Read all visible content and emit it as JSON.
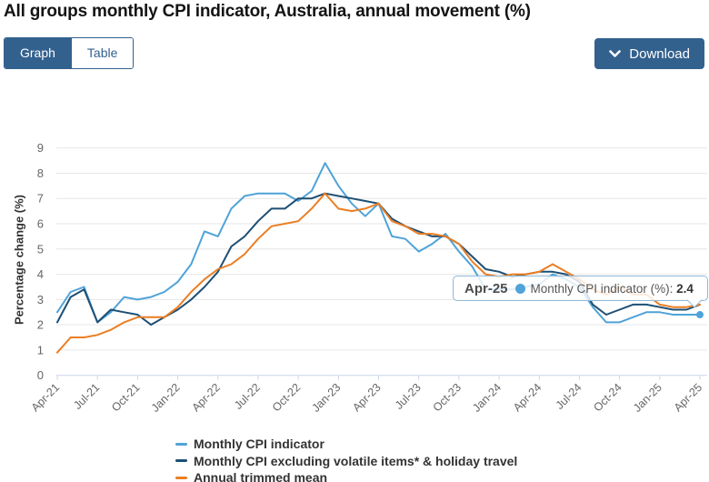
{
  "page": {
    "title": "All groups monthly CPI indicator, Australia, annual movement (%)"
  },
  "toolbar": {
    "tabs": [
      {
        "label": "Graph",
        "active": true
      },
      {
        "label": "Table",
        "active": false
      }
    ],
    "download_label": "Download"
  },
  "colors": {
    "button_blue": "#33618E",
    "grid_line": "#E6E6E6",
    "axis_zero_line": "#CCD6EB",
    "tick_text": "#666666",
    "legend_text": "#333333"
  },
  "chart_data": {
    "type": "line",
    "title": "All groups monthly CPI indicator, Australia, annual movement (%)",
    "xlabel": "",
    "ylabel": "Percentage change (%)",
    "ylim": [
      0,
      9
    ],
    "y_ticks": [
      0,
      1,
      2,
      3,
      4,
      5,
      6,
      7,
      8,
      9
    ],
    "grid": true,
    "legend_position": "bottom",
    "x_tick_every": 3,
    "x_tick_labels": [
      "Apr-21",
      "Jul-21",
      "Oct-21",
      "Jan-22",
      "Apr-22",
      "Jul-22",
      "Oct-22",
      "Jan-23",
      "Apr-23",
      "Jul-23",
      "Oct-23",
      "Jan-24",
      "Apr-24",
      "Jul-24",
      "Oct-24",
      "Jan-25",
      "Apr-25"
    ],
    "categories": [
      "Apr-21",
      "May-21",
      "Jun-21",
      "Jul-21",
      "Aug-21",
      "Sep-21",
      "Oct-21",
      "Nov-21",
      "Dec-21",
      "Jan-22",
      "Feb-22",
      "Mar-22",
      "Apr-22",
      "May-22",
      "Jun-22",
      "Jul-22",
      "Aug-22",
      "Sep-22",
      "Oct-22",
      "Nov-22",
      "Dec-22",
      "Jan-23",
      "Feb-23",
      "Mar-23",
      "Apr-23",
      "May-23",
      "Jun-23",
      "Jul-23",
      "Aug-23",
      "Sep-23",
      "Oct-23",
      "Nov-23",
      "Dec-23",
      "Jan-24",
      "Feb-24",
      "Mar-24",
      "Apr-24",
      "May-24",
      "Jun-24",
      "Jul-24",
      "Aug-24",
      "Sep-24",
      "Oct-24",
      "Nov-24",
      "Dec-24",
      "Jan-25",
      "Feb-25",
      "Mar-25",
      "Apr-25"
    ],
    "series": [
      {
        "name": "Monthly CPI indicator",
        "color": "#4FA3D9",
        "values": [
          2.5,
          3.3,
          3.5,
          2.1,
          2.5,
          3.1,
          3.0,
          3.1,
          3.3,
          3.7,
          4.4,
          5.7,
          5.5,
          6.6,
          7.1,
          7.2,
          7.2,
          7.2,
          6.9,
          7.3,
          8.4,
          7.5,
          6.8,
          6.3,
          6.8,
          5.5,
          5.4,
          4.9,
          5.2,
          5.6,
          4.9,
          4.3,
          3.4,
          3.4,
          3.4,
          3.5,
          3.6,
          4.0,
          3.8,
          3.5,
          2.7,
          2.1,
          2.1,
          2.3,
          2.5,
          2.5,
          2.4,
          2.4,
          2.4
        ]
      },
      {
        "name": "Monthly CPI excluding volatile items* & holiday travel",
        "color": "#1D4F74",
        "values": [
          2.1,
          3.1,
          3.4,
          2.1,
          2.6,
          2.5,
          2.4,
          2.0,
          2.3,
          2.6,
          3.0,
          3.5,
          4.1,
          5.1,
          5.5,
          6.1,
          6.6,
          6.6,
          7.0,
          7.0,
          7.2,
          7.1,
          7.0,
          6.9,
          6.8,
          6.2,
          5.9,
          5.7,
          5.5,
          5.5,
          5.2,
          4.7,
          4.2,
          4.1,
          3.9,
          4.0,
          4.1,
          4.1,
          4.0,
          3.7,
          2.8,
          2.4,
          2.6,
          2.8,
          2.8,
          2.7,
          2.6,
          2.6,
          2.8
        ]
      },
      {
        "name": "Annual trimmed mean",
        "color": "#EB7E23",
        "values": [
          0.9,
          1.5,
          1.5,
          1.6,
          1.8,
          2.1,
          2.3,
          2.3,
          2.3,
          2.7,
          3.3,
          3.8,
          4.2,
          4.4,
          4.8,
          5.4,
          5.9,
          6.0,
          6.1,
          6.6,
          7.2,
          6.6,
          6.5,
          6.6,
          6.8,
          6.1,
          5.9,
          5.6,
          5.6,
          5.5,
          5.2,
          4.5,
          4.0,
          3.9,
          4.0,
          4.0,
          4.1,
          4.4,
          4.1,
          3.8,
          3.4,
          3.2,
          3.5,
          3.2,
          3.2,
          2.8,
          2.7,
          2.7,
          2.8
        ]
      }
    ]
  },
  "tooltip": {
    "label": "Apr-25",
    "series_text": "Monthly CPI indicator (%): ",
    "value": "2.4",
    "dot_color": "#4FA3D9"
  }
}
